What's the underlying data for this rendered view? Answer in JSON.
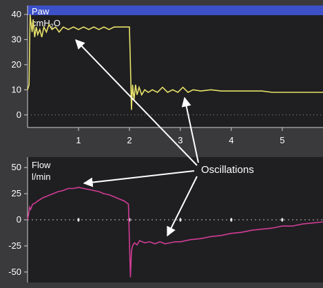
{
  "chart_data": [
    {
      "type": "line",
      "label_line1": "Paw",
      "label_line2": "cmH",
      "label_sub": "2",
      "label_tail": "O",
      "xlim": [
        0,
        5.8
      ],
      "ylim": [
        -5,
        43
      ],
      "yticks": [
        0,
        10,
        20,
        30,
        40
      ],
      "xticks": [
        1,
        2,
        3,
        4,
        5
      ],
      "series_color": "#e8e26a",
      "header_color": "#3c50c8",
      "series": [
        {
          "x": [
            0,
            0.03,
            0.05,
            0.07,
            0.09,
            0.11,
            0.14,
            0.17,
            0.2,
            0.24,
            0.28,
            0.32,
            0.37,
            0.42,
            0.48,
            0.55,
            0.62,
            0.7,
            0.8,
            0.9,
            1.0,
            1.1,
            1.2,
            1.3,
            1.4,
            1.5,
            1.6,
            1.7,
            1.8,
            1.9,
            2.0,
            2.02,
            2.04,
            2.06,
            2.09,
            2.12,
            2.15,
            2.19,
            2.24,
            2.3,
            2.37,
            2.45,
            2.55,
            2.65,
            2.75,
            2.85,
            2.95,
            3.05,
            3.15,
            3.25,
            3.4,
            3.6,
            3.8,
            4.0,
            4.2,
            4.4,
            4.6,
            4.8,
            5.0,
            5.2,
            5.4,
            5.6,
            5.8
          ],
          "y": [
            10,
            12,
            40,
            36,
            33,
            38,
            31,
            35,
            32,
            34,
            31,
            35,
            33,
            36,
            34,
            35,
            33,
            35,
            34,
            35,
            34,
            35,
            34,
            35,
            34,
            35,
            34,
            35,
            35,
            35,
            35,
            20,
            2,
            12,
            6,
            12,
            8,
            11,
            8,
            10,
            9,
            10,
            9,
            11,
            9,
            10,
            9,
            11,
            9,
            10,
            9.5,
            10,
            9.5,
            9.5,
            9.5,
            9.5,
            9.5,
            9,
            9,
            9,
            9,
            9,
            9
          ]
        }
      ]
    },
    {
      "type": "line",
      "label_line1": "Flow",
      "label_line2": "l/min",
      "xlim": [
        0,
        5.8
      ],
      "ylim": [
        -60,
        60
      ],
      "yticks": [
        -50,
        -25,
        0,
        25,
        50
      ],
      "series_color": "#d23c96",
      "series": [
        {
          "x": [
            0,
            0.02,
            0.04,
            0.06,
            0.1,
            0.15,
            0.2,
            0.3,
            0.4,
            0.5,
            0.6,
            0.7,
            0.8,
            0.9,
            1.0,
            1.1,
            1.2,
            1.3,
            1.4,
            1.5,
            1.6,
            1.7,
            1.8,
            1.9,
            1.98,
            2.0,
            2.02,
            2.04,
            2.06,
            2.1,
            2.15,
            2.2,
            2.3,
            2.4,
            2.5,
            2.6,
            2.7,
            2.8,
            2.9,
            3.0,
            3.2,
            3.4,
            3.6,
            3.8,
            4.0,
            4.2,
            4.4,
            4.6,
            4.8,
            5.0,
            5.2,
            5.4,
            5.6,
            5.8
          ],
          "y": [
            0,
            5,
            12,
            10,
            15,
            16,
            18,
            21,
            23,
            25,
            27,
            28,
            30,
            30,
            31,
            30,
            29,
            28,
            27,
            25,
            24,
            22,
            20,
            18,
            15,
            -20,
            -55,
            -30,
            -25,
            -22,
            -24,
            -20,
            -22,
            -21,
            -23,
            -21,
            -23,
            -22,
            -21,
            -21,
            -19,
            -18,
            -16,
            -15,
            -13,
            -12,
            -10,
            -9,
            -8,
            -6,
            -6,
            -4,
            -3,
            -2
          ]
        }
      ]
    }
  ],
  "annotation": "Oscillations"
}
